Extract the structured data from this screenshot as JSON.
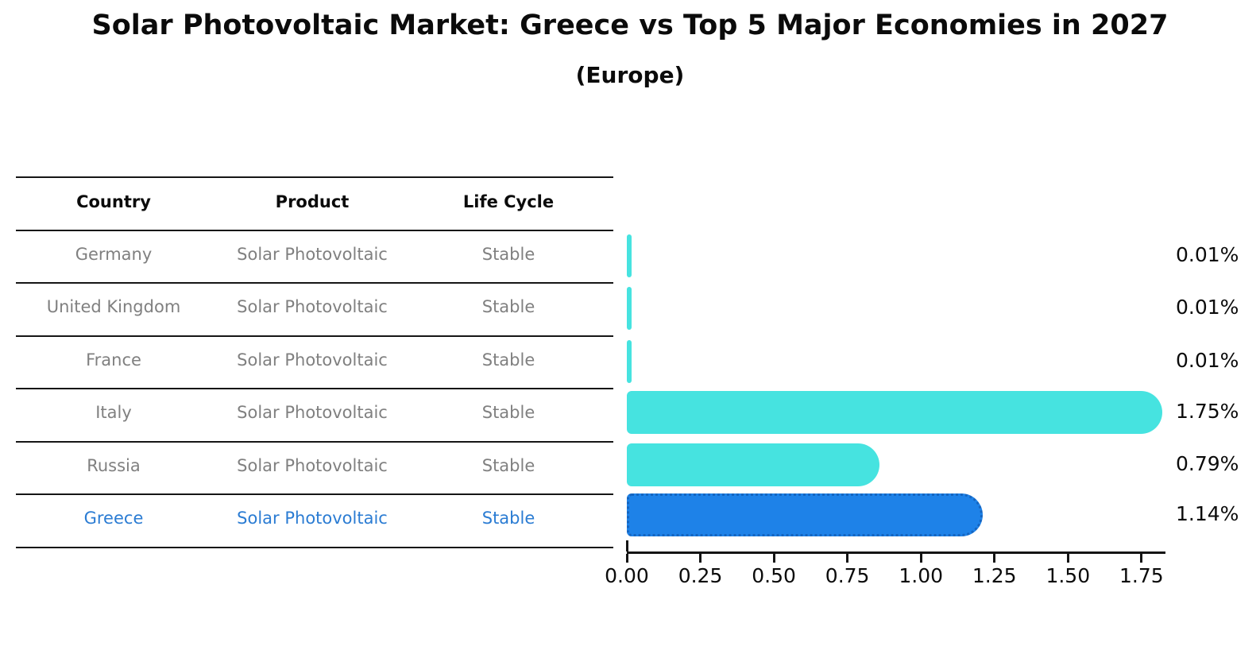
{
  "title": "Solar Photovoltaic Market: Greece vs Top 5 Major Economies in 2027",
  "subtitle": "(Europe)",
  "table": {
    "headers": [
      "Country",
      "Product",
      "Life Cycle"
    ],
    "rows": [
      {
        "country": "Germany",
        "product": "Solar Photovoltaic",
        "life_cycle": "Stable",
        "highlighted": false
      },
      {
        "country": "United Kingdom",
        "product": "Solar Photovoltaic",
        "life_cycle": "Stable",
        "highlighted": false
      },
      {
        "country": "France",
        "product": "Solar Photovoltaic",
        "life_cycle": "Stable",
        "highlighted": false
      },
      {
        "country": "Italy",
        "product": "Solar Photovoltaic",
        "life_cycle": "Stable",
        "highlighted": false
      },
      {
        "country": "Russia",
        "product": "Solar Photovoltaic",
        "life_cycle": "Stable",
        "highlighted": false
      },
      {
        "country": "Greece",
        "product": "Solar Photovoltaic",
        "life_cycle": "Stable",
        "highlighted": true
      }
    ]
  },
  "chart_data": {
    "type": "bar",
    "orientation": "horizontal",
    "title": "Solar Photovoltaic Market: Greece vs Top 5 Major Economies in 2027",
    "subtitle": "(Europe)",
    "categories": [
      "Germany",
      "United Kingdom",
      "France",
      "Italy",
      "Russia",
      "Greece"
    ],
    "values": [
      0.01,
      0.01,
      0.01,
      1.75,
      0.79,
      1.14
    ],
    "value_labels": [
      "0.01%",
      "0.01%",
      "0.01%",
      "1.75%",
      "0.79%",
      "1.14%"
    ],
    "x_ticks": [
      "0.00",
      "0.25",
      "0.50",
      "0.75",
      "1.00",
      "1.25",
      "1.50",
      "1.75"
    ],
    "xlim": [
      0,
      1.83
    ],
    "grid": false,
    "legend": false,
    "bar_color": "#46E3E0",
    "highlight_index": 5,
    "highlight_color": "#1E82E8",
    "highlight_edge_color": "#1565C0"
  },
  "colors": {
    "row_text": "#808080",
    "highlight_text": "#2B7CD3",
    "header_text": "#0B0B0B",
    "axis": "#141414"
  }
}
